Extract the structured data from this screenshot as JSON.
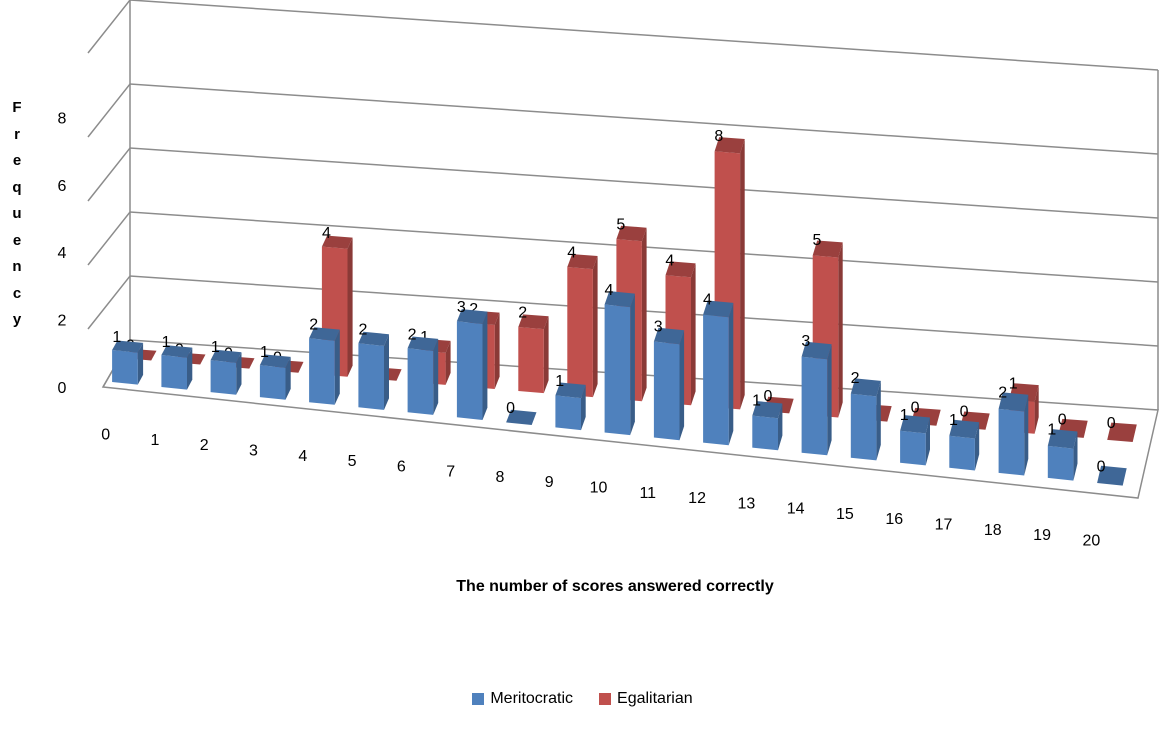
{
  "chart_data": {
    "type": "bar",
    "variant": "3d-clustered-depth",
    "title": "",
    "xlabel": "The number of scores answered correctly",
    "ylabel": "Frequency",
    "ylim": [
      0,
      8
    ],
    "yticks": [
      "0",
      "2",
      "4",
      "6",
      "8"
    ],
    "grid": true,
    "legend": "bottom",
    "categories": [
      "0",
      "1",
      "2",
      "3",
      "4",
      "5",
      "6",
      "7",
      "8",
      "9",
      "10",
      "11",
      "12",
      "13",
      "14",
      "15",
      "16",
      "17",
      "18",
      "19",
      "20"
    ],
    "series": [
      {
        "name": "Meritocratic",
        "color": "#4f81bd",
        "values": [
          1,
          1,
          1,
          1,
          2,
          2,
          2,
          3,
          0,
          1,
          4,
          3,
          4,
          1,
          3,
          2,
          1,
          1,
          2,
          1,
          0
        ]
      },
      {
        "name": "Egalitarian",
        "color": "#c0504d",
        "values": [
          0,
          0,
          0,
          0,
          4,
          0,
          1,
          2,
          2,
          4,
          5,
          4,
          8,
          0,
          5,
          0,
          0,
          0,
          1,
          0,
          0
        ]
      }
    ]
  }
}
